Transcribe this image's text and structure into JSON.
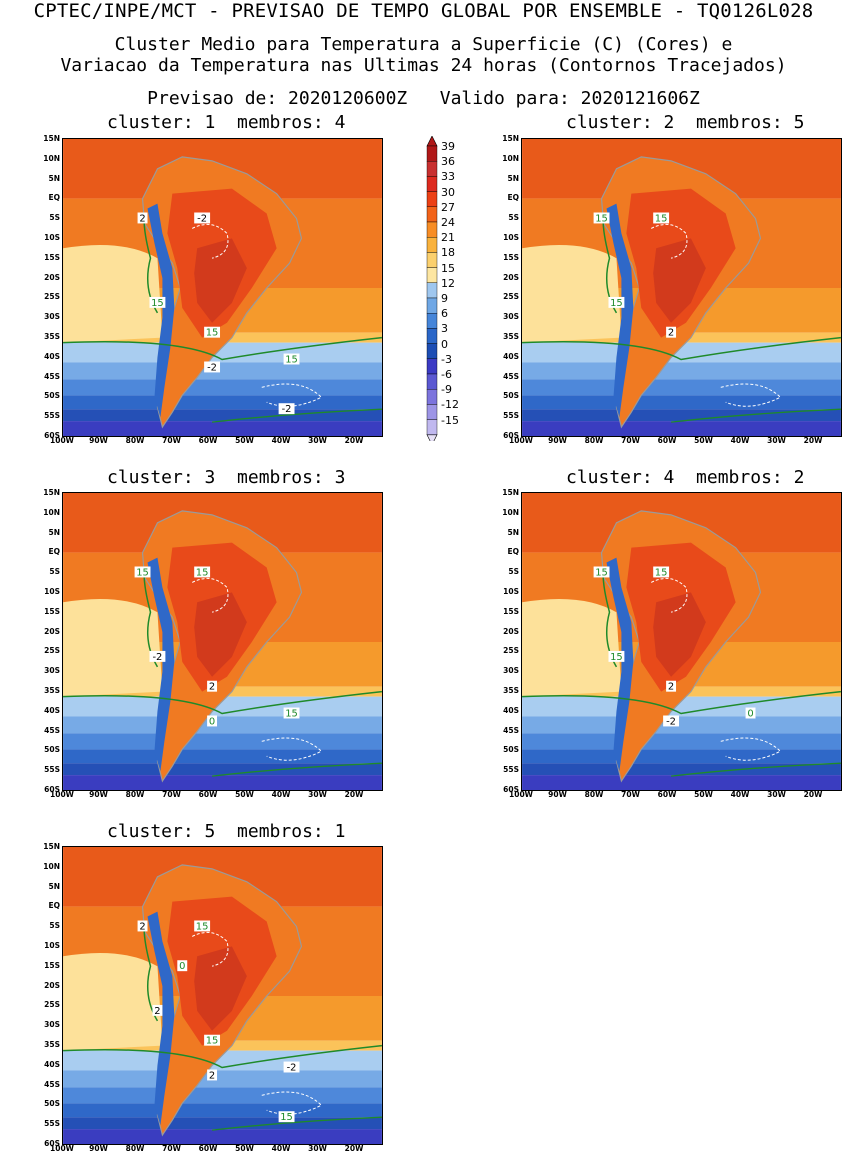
{
  "header": {
    "main_title": "CPTEC/INPE/MCT - PREVISAO DE TEMPO GLOBAL POR ENSEMBLE - TQ0126L028",
    "subtitle_line1": "Cluster Medio para Temperatura a Superficie (C) (Cores) e",
    "subtitle_line2": "Variacao da Temperatura nas Ultimas 24 horas (Contornos Tracejados)",
    "run_line": "Previsao de: 2020120600Z   Valido para: 2020121606Z"
  },
  "axes": {
    "lat_labels": [
      "15N",
      "10N",
      "5N",
      "EQ",
      "5S",
      "10S",
      "15S",
      "20S",
      "25S",
      "30S",
      "35S",
      "40S",
      "45S",
      "50S",
      "55S",
      "60S"
    ],
    "lon_labels": [
      "100W",
      "90W",
      "80W",
      "70W",
      "60W",
      "50W",
      "40W",
      "30W",
      "20W"
    ]
  },
  "colorbar": {
    "levels": [
      "39",
      "36",
      "33",
      "30",
      "27",
      "24",
      "21",
      "18",
      "15",
      "12",
      "9",
      "6",
      "3",
      "0",
      "-3",
      "-6",
      "-9",
      "-12",
      "-15"
    ],
    "colors": [
      "#b01818",
      "#c83030",
      "#dd2a1f",
      "#ec4015",
      "#f26319",
      "#f78d25",
      "#f9b23d",
      "#fbd06e",
      "#fde6a1",
      "#9fc7ef",
      "#6fa7e5",
      "#4585d9",
      "#2a66c8",
      "#1c4db4",
      "#3b3ac4",
      "#5b58d2",
      "#7c74dd",
      "#9d95e6",
      "#c0b8ef"
    ]
  },
  "panels": [
    {
      "title": "cluster: 1  membros: 4",
      "labels": [
        "-2",
        "2",
        "15",
        "15",
        "15",
        "-2",
        "-2"
      ]
    },
    {
      "title": "cluster: 2  membros: 5",
      "labels": [
        "15",
        "15",
        "2",
        "15"
      ]
    },
    {
      "title": "cluster: 3  membros: 3",
      "labels": [
        "15",
        "15",
        "2",
        "-2",
        "15",
        "0"
      ]
    },
    {
      "title": "cluster: 4  membros: 2",
      "labels": [
        "15",
        "15",
        "2",
        "15",
        "0",
        "-2"
      ]
    },
    {
      "title": "cluster: 5  membros: 1",
      "labels": [
        "15",
        "2",
        "15",
        "2",
        "-2",
        "2",
        "15",
        "0"
      ]
    }
  ]
}
